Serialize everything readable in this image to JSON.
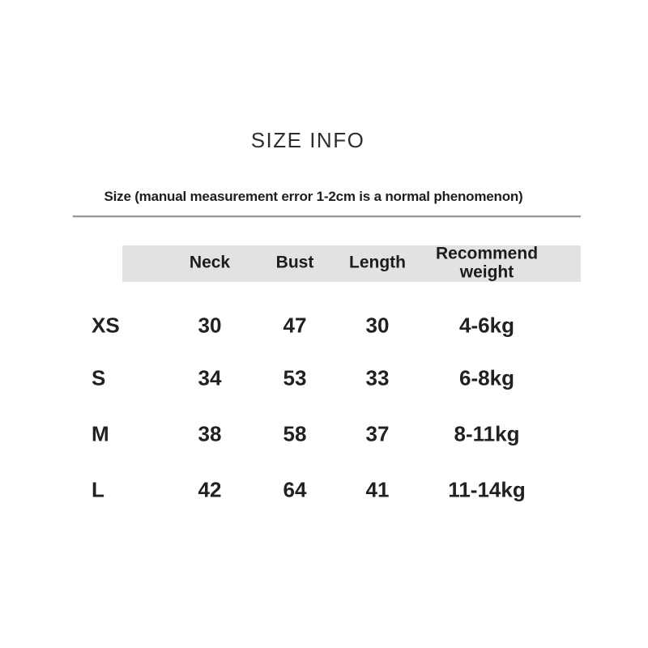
{
  "page": {
    "title": "SIZE INFO",
    "subtitle": "Size (manual measurement error 1-2cm is a normal phenomenon)"
  },
  "table": {
    "header": {
      "size": "",
      "neck": "Neck",
      "bust": "Bust",
      "length": "Length",
      "weight": "Recommend weight"
    },
    "rows": [
      {
        "size": "XS",
        "neck": "30",
        "bust": "47",
        "length": "30",
        "weight": "4-6kg"
      },
      {
        "size": "S",
        "neck": "34",
        "bust": "53",
        "length": "33",
        "weight": "6-8kg"
      },
      {
        "size": "M",
        "neck": "38",
        "bust": "58",
        "length": "37",
        "weight": "8-11kg"
      },
      {
        "size": "L",
        "neck": "42",
        "bust": "64",
        "length": "41",
        "weight": "11-14kg"
      }
    ]
  },
  "colors": {
    "background": "#ffffff",
    "header_bg": "#e2e2e2",
    "divider": "#999999",
    "text": "#212121"
  }
}
